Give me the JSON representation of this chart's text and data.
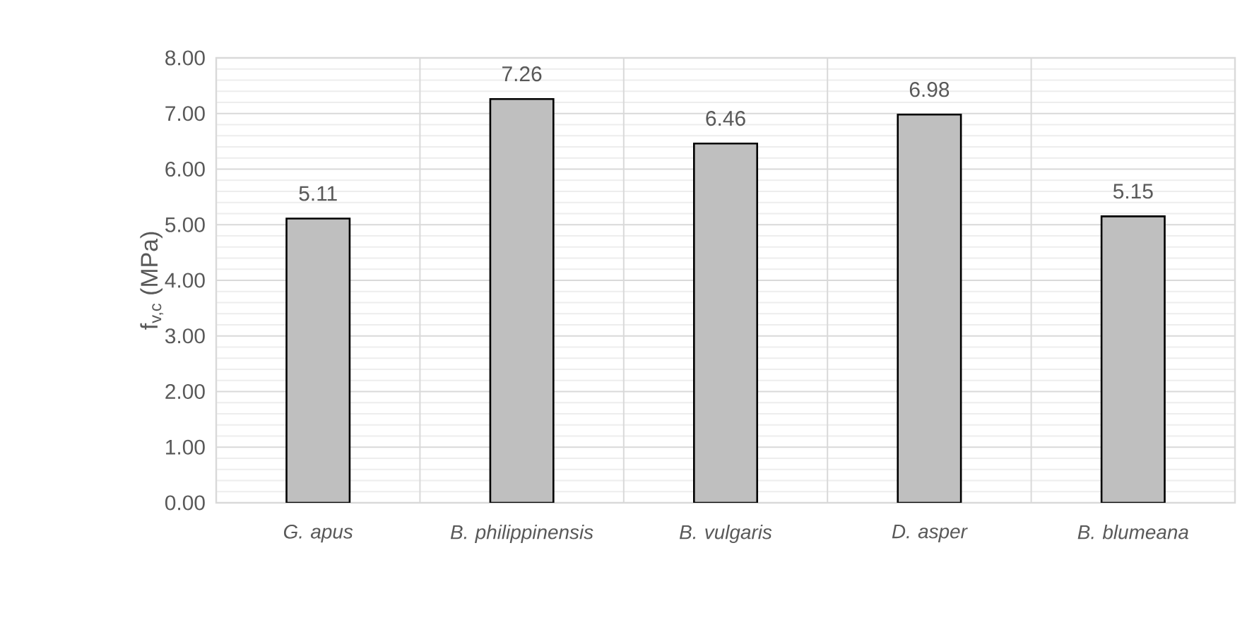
{
  "chart_data": {
    "type": "bar",
    "ylabel": "f$_{v,c}$ (MPa)",
    "categories": [
      "G. apus",
      "B. philippinensis",
      "B. vulgaris",
      "D. asper",
      "B. blumeana"
    ],
    "values": [
      5.11,
      7.26,
      6.46,
      6.98,
      5.15
    ],
    "color": "#bfbfbf",
    "data_labels": true,
    "ylim": [
      0,
      8
    ],
    "yticks": [
      {
        "value": 0,
        "label": "0.00"
      },
      {
        "value": 1,
        "label": "1.00"
      },
      {
        "value": 2,
        "label": "2.00"
      },
      {
        "value": 3,
        "label": "3.00"
      },
      {
        "value": 4,
        "label": "4.00"
      },
      {
        "value": 5,
        "label": "5.00"
      },
      {
        "value": 6,
        "label": "6.00"
      },
      {
        "value": 7,
        "label": "7.00"
      },
      {
        "value": 8,
        "label": "8.00"
      }
    ],
    "grid": true
  }
}
